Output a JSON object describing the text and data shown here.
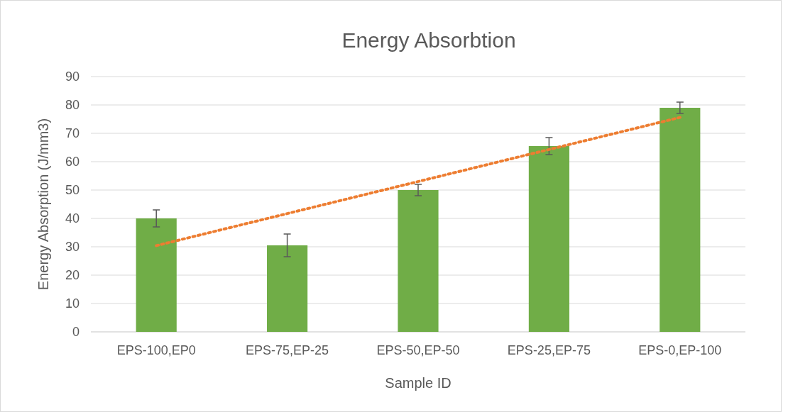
{
  "chart_data": {
    "type": "bar",
    "title": "Energy Absorbtion",
    "xlabel": "Sample ID",
    "ylabel": "Energy Absorption (J/mm3)",
    "categories": [
      "EPS-100,EP0",
      "EPS-75,EP-25",
      "EPS-50,EP-50",
      "EPS-25,EP-75",
      "EPS-0,EP-100"
    ],
    "series": [
      {
        "color": "#70ad47",
        "values": [
          40,
          30.5,
          50,
          65.5,
          79
        ],
        "errors": [
          3,
          4,
          2,
          3,
          2
        ]
      },
      {
        "type": "line",
        "color": "#ed7d31",
        "x": [
          "EPS-100,EP0",
          "EPS-0,EP-100"
        ],
        "values": [
          30.4,
          75.6
        ],
        "line_style": "dotted"
      }
    ],
    "ylim": [
      0,
      90
    ],
    "yticks": [
      0,
      10,
      20,
      30,
      40,
      50,
      60,
      70,
      80,
      90
    ],
    "grid": "y"
  }
}
